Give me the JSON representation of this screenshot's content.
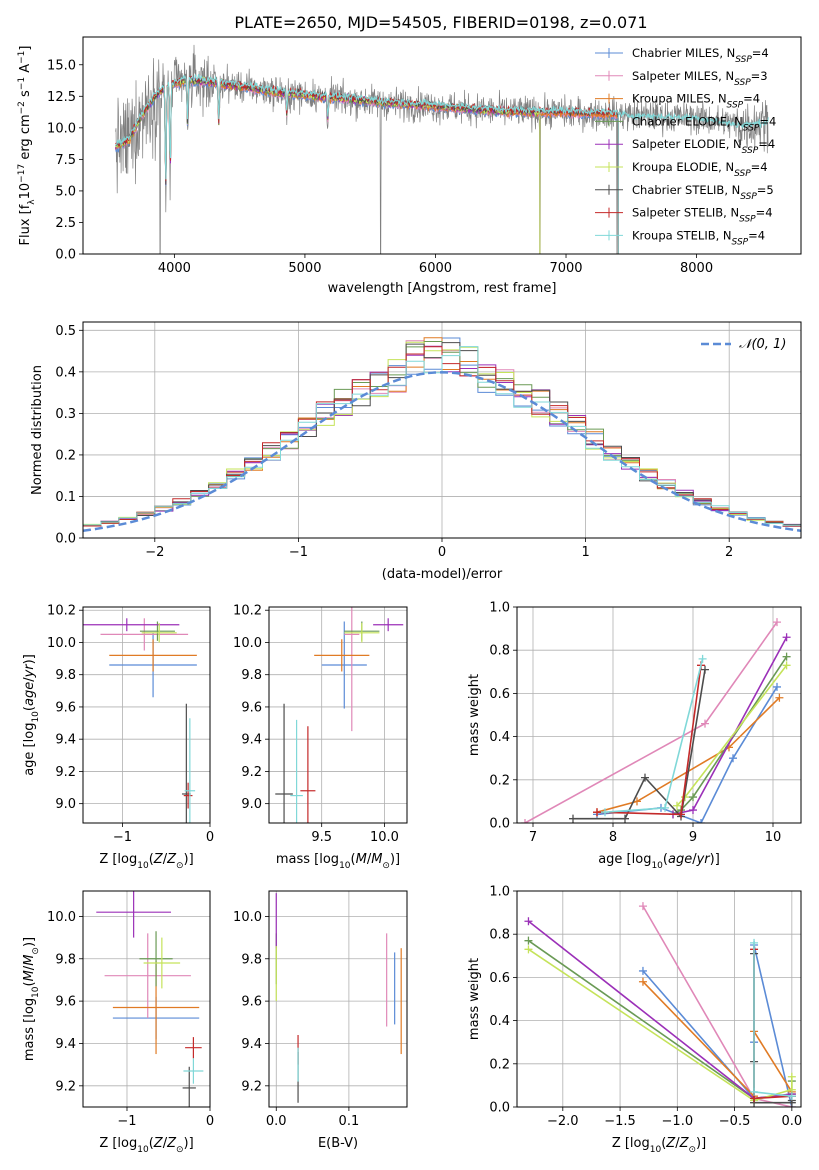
{
  "figure_title": "PLATE=2650, MJD=54505, FIBERID=0198, z=0.071",
  "colors": {
    "chabrier_miles": "#5b8bd6",
    "salpeter_miles": "#e088b8",
    "kroupa_miles": "#e07b25",
    "chabrier_elodie": "#6a9a55",
    "salpeter_elodie": "#9b30b8",
    "kroupa_elodie": "#c5e35a",
    "chabrier_stelib": "#4d4d4d",
    "salpeter_stelib": "#c42a2a",
    "kroupa_stelib": "#80d8d8",
    "gaussian": "#5b8bd6",
    "data": "#808080"
  },
  "chart_data": [
    {
      "id": "spectrum",
      "type": "line",
      "xlabel": "wavelength [Angstrom, rest frame]",
      "ylabel": "Flux [f",
      "xlim": [
        3300,
        8800
      ],
      "ylim": [
        0,
        17.2
      ],
      "xticks": [
        4000,
        5000,
        6000,
        7000,
        8000
      ],
      "yticks": [
        0.0,
        2.5,
        5.0,
        7.5,
        10.0,
        12.5,
        15.0
      ],
      "grid": false,
      "legend_position": "top-right",
      "legend": [
        {
          "model": "Chabrier MILES, N",
          "nssp": "=4",
          "key": "chabrier_miles"
        },
        {
          "model": "Salpeter MILES, N",
          "nssp": "=3",
          "key": "salpeter_miles"
        },
        {
          "model": "Kroupa MILES, N",
          "nssp": "=4",
          "key": "kroupa_miles"
        },
        {
          "model": "Chabrier ELODIE, N",
          "nssp": "=4",
          "key": "chabrier_elodie"
        },
        {
          "model": "Salpeter ELODIE, N",
          "nssp": "=4",
          "key": "salpeter_elodie"
        },
        {
          "model": "Kroupa ELODIE, N",
          "nssp": "=4",
          "key": "kroupa_elodie"
        },
        {
          "model": "Chabrier STELIB, N",
          "nssp": "=5",
          "key": "chabrier_stelib"
        },
        {
          "model": "Salpeter STELIB, N",
          "nssp": "=4",
          "key": "salpeter_stelib"
        },
        {
          "model": "Kroupa STELIB, N",
          "nssp": "=4",
          "key": "kroupa_stelib"
        }
      ],
      "continuum": [
        [
          3550,
          8.5
        ],
        [
          3650,
          9.0
        ],
        [
          3750,
          11.0
        ],
        [
          3850,
          12.5
        ],
        [
          3950,
          13.3
        ],
        [
          4100,
          13.8
        ],
        [
          4300,
          13.6
        ],
        [
          4500,
          13.3
        ],
        [
          4800,
          12.8
        ],
        [
          5200,
          12.4
        ],
        [
          5600,
          12.0
        ],
        [
          6000,
          11.7
        ],
        [
          6500,
          11.3
        ],
        [
          7000,
          11.2
        ],
        [
          7500,
          11.0
        ],
        [
          8000,
          10.8
        ],
        [
          8350,
          10.2
        ],
        [
          8550,
          10.5
        ]
      ],
      "absorption_features": [
        {
          "x": 3934,
          "y": 3.5
        },
        {
          "x": 3968,
          "y": 5.0
        },
        {
          "x": 4101,
          "y": 9.5
        },
        {
          "x": 4340,
          "y": 9.6
        },
        {
          "x": 4861,
          "y": 10.6
        },
        {
          "x": 5175,
          "y": 10.4
        }
      ],
      "sky_spikes": [
        {
          "x": 3890,
          "y": 0
        },
        {
          "x": 5580,
          "y": 0
        },
        {
          "x": 6800,
          "y": 0
        },
        {
          "x": 7390,
          "y": 0
        }
      ],
      "stelib_end": 7400,
      "noise_level": 1.0
    },
    {
      "id": "residuals",
      "type": "histogram",
      "xlabel": "(data-model)/error",
      "ylabel": "Normed distribution",
      "xlim": [
        -2.5,
        2.5
      ],
      "ylim": [
        0,
        0.52
      ],
      "xticks": [
        -2,
        -1,
        0,
        1,
        2
      ],
      "yticks": [
        0.0,
        0.1,
        0.2,
        0.3,
        0.4,
        0.5
      ],
      "grid": true,
      "legend_position": "top-right",
      "gaussian_label": "𝒩(0, 1)",
      "bins": 40
    },
    {
      "id": "age_vs_Z",
      "type": "errorbar",
      "xlabel": "Z [log",
      "ylabel": "age  [log",
      "xlim": [
        -1.45,
        0.0
      ],
      "ylim": [
        8.88,
        10.22
      ],
      "xticks": [
        -1,
        0
      ],
      "yticks": [
        9.0,
        9.2,
        9.4,
        9.6,
        9.8,
        10.0,
        10.2
      ],
      "grid": true,
      "points": [
        {
          "key": "chabrier_miles",
          "x": -0.65,
          "xerr": 0.5,
          "y": 9.86,
          "yerr": 0.2
        },
        {
          "key": "salpeter_miles",
          "x": -0.75,
          "xerr": 0.5,
          "y": 10.05,
          "yerr": 0.1
        },
        {
          "key": "kroupa_miles",
          "x": -0.65,
          "xerr": 0.5,
          "y": 9.92,
          "yerr": 0.1
        },
        {
          "key": "chabrier_elodie",
          "x": -0.6,
          "xerr": 0.2,
          "y": 10.07,
          "yerr": 0.06
        },
        {
          "key": "salpeter_elodie",
          "x": -0.95,
          "xerr": 0.6,
          "y": 10.11,
          "yerr": 0.04
        },
        {
          "key": "kroupa_elodie",
          "x": -0.58,
          "xerr": 0.2,
          "y": 10.06,
          "yerr": 0.06
        },
        {
          "key": "chabrier_stelib",
          "x": -0.27,
          "xerr": 0.05,
          "y": 9.06,
          "yerr": 0.56
        },
        {
          "key": "salpeter_stelib",
          "x": -0.25,
          "xerr": 0.05,
          "y": 9.05,
          "yerr": 0.08
        },
        {
          "key": "kroupa_stelib",
          "x": -0.23,
          "xerr": 0.06,
          "y": 9.08,
          "yerr": 0.45
        }
      ]
    },
    {
      "id": "age_vs_mass",
      "type": "errorbar",
      "xlabel": "mass [log",
      "ylabel": "",
      "xlim": [
        9.08,
        10.18
      ],
      "ylim": [
        8.88,
        10.22
      ],
      "xticks": [
        9.5,
        10.0
      ],
      "yticks": [
        9.0,
        9.2,
        9.4,
        9.6,
        9.8,
        10.0,
        10.2
      ],
      "grid": true,
      "points": [
        {
          "key": "chabrier_miles",
          "x": 9.68,
          "xerr": 0.18,
          "y": 9.86,
          "yerr": 0.27
        },
        {
          "key": "salpeter_miles",
          "x": 9.74,
          "xerr": 0.06,
          "y": 10.05,
          "yerr": 0.6
        },
        {
          "key": "kroupa_miles",
          "x": 9.66,
          "xerr": 0.22,
          "y": 9.92,
          "yerr": 0.1
        },
        {
          "key": "chabrier_elodie",
          "x": 9.82,
          "xerr": 0.14,
          "y": 10.07,
          "yerr": 0.06
        },
        {
          "key": "salpeter_elodie",
          "x": 10.03,
          "xerr": 0.12,
          "y": 10.11,
          "yerr": 0.04
        },
        {
          "key": "kroupa_elodie",
          "x": 9.82,
          "xerr": 0.14,
          "y": 10.06,
          "yerr": 0.06
        },
        {
          "key": "chabrier_stelib",
          "x": 9.2,
          "xerr": 0.07,
          "y": 9.06,
          "yerr": 0.56
        },
        {
          "key": "salpeter_stelib",
          "x": 9.39,
          "xerr": 0.06,
          "y": 9.08,
          "yerr": 0.4
        },
        {
          "key": "kroupa_stelib",
          "x": 9.3,
          "xerr": 0.05,
          "y": 9.05,
          "yerr": 0.47
        }
      ]
    },
    {
      "id": "weight_vs_age",
      "type": "line",
      "xlabel": "age  [log",
      "ylabel": "mass weight",
      "xlim": [
        6.8,
        10.35
      ],
      "ylim": [
        0,
        1.0
      ],
      "xticks": [
        7,
        8,
        9,
        10
      ],
      "yticks": [
        0.0,
        0.2,
        0.4,
        0.6,
        0.8,
        1.0
      ],
      "grid": true,
      "series": [
        {
          "key": "chabrier_miles",
          "x": [
            7.8,
            8.6,
            9.1,
            9.5,
            10.05
          ],
          "y": [
            0.04,
            0.07,
            0.0,
            0.3,
            0.63
          ]
        },
        {
          "key": "salpeter_miles",
          "x": [
            6.9,
            9.15,
            10.05
          ],
          "y": [
            0.0,
            0.46,
            0.93
          ]
        },
        {
          "key": "kroupa_miles",
          "x": [
            7.8,
            8.3,
            9.45,
            10.08
          ],
          "y": [
            0.05,
            0.1,
            0.35,
            0.58
          ]
        },
        {
          "key": "chabrier_elodie",
          "x": [
            8.75,
            8.85,
            9.0,
            10.17
          ],
          "y": [
            0.04,
            0.06,
            0.12,
            0.77
          ]
        },
        {
          "key": "salpeter_elodie",
          "x": [
            8.75,
            9.0,
            10.17
          ],
          "y": [
            0.04,
            0.06,
            0.86
          ]
        },
        {
          "key": "kroupa_elodie",
          "x": [
            8.8,
            8.9,
            10.17
          ],
          "y": [
            0.08,
            0.12,
            0.73
          ]
        },
        {
          "key": "chabrier_stelib",
          "x": [
            7.5,
            8.15,
            8.4,
            8.85,
            9.15
          ],
          "y": [
            0.02,
            0.02,
            0.21,
            0.03,
            0.71
          ]
        },
        {
          "key": "salpeter_stelib",
          "x": [
            7.8,
            8.85,
            9.1
          ],
          "y": [
            0.05,
            0.04,
            0.73
          ]
        },
        {
          "key": "kroupa_stelib",
          "x": [
            7.9,
            8.65,
            9.12
          ],
          "y": [
            0.05,
            0.07,
            0.76
          ]
        }
      ]
    },
    {
      "id": "mass_vs_Z",
      "type": "errorbar",
      "xlabel": "Z [log",
      "ylabel": "mass [log",
      "xlim": [
        -1.53,
        0.0
      ],
      "ylim": [
        9.1,
        10.12
      ],
      "xticks": [
        -1,
        0
      ],
      "yticks": [
        9.2,
        9.4,
        9.6,
        9.8,
        10.0
      ],
      "grid": true,
      "points": [
        {
          "key": "chabrier_miles",
          "x": -0.65,
          "xerr": 0.52,
          "y": 9.52,
          "yerr": 0.1
        },
        {
          "key": "salpeter_miles",
          "x": -0.75,
          "xerr": 0.52,
          "y": 9.72,
          "yerr": 0.2
        },
        {
          "key": "kroupa_miles",
          "x": -0.65,
          "xerr": 0.52,
          "y": 9.57,
          "yerr": 0.22
        },
        {
          "key": "chabrier_elodie",
          "x": -0.65,
          "xerr": 0.2,
          "y": 9.8,
          "yerr": 0.13
        },
        {
          "key": "salpeter_elodie",
          "x": -0.92,
          "xerr": 0.45,
          "y": 10.02,
          "yerr": 0.12
        },
        {
          "key": "kroupa_elodie",
          "x": -0.58,
          "xerr": 0.22,
          "y": 9.78,
          "yerr": 0.12
        },
        {
          "key": "chabrier_stelib",
          "x": -0.25,
          "xerr": 0.08,
          "y": 9.19,
          "yerr": 0.1
        },
        {
          "key": "salpeter_stelib",
          "x": -0.2,
          "xerr": 0.1,
          "y": 9.38,
          "yerr": 0.05
        },
        {
          "key": "kroupa_stelib",
          "x": -0.2,
          "xerr": 0.12,
          "y": 9.27,
          "yerr": 0.06
        }
      ]
    },
    {
      "id": "mass_vs_ebv",
      "type": "errorbar",
      "xlabel": "E(B-V)",
      "ylabel": "",
      "xlim": [
        -0.01,
        0.18
      ],
      "ylim": [
        9.1,
        10.12
      ],
      "xticks": [
        0.0,
        0.1
      ],
      "yticks": [
        9.2,
        9.4,
        9.6,
        9.8,
        10.0
      ],
      "grid": true,
      "points": [
        {
          "key": "chabrier_miles",
          "x": 0.163,
          "xerr": 0.0,
          "y": 9.66,
          "yerr": 0.17
        },
        {
          "key": "salpeter_miles",
          "x": 0.152,
          "xerr": 0.0,
          "y": 9.7,
          "yerr": 0.22
        },
        {
          "key": "kroupa_miles",
          "x": 0.172,
          "xerr": 0.0,
          "y": 9.6,
          "yerr": 0.25
        },
        {
          "key": "chabrier_elodie",
          "x": 0.0,
          "xerr": 0.0,
          "y": 9.8,
          "yerr": 0.12
        },
        {
          "key": "salpeter_elodie",
          "x": 0.0,
          "xerr": 0.0,
          "y": 9.98,
          "yerr": 0.13
        },
        {
          "key": "kroupa_elodie",
          "x": 0.0,
          "xerr": 0.0,
          "y": 9.73,
          "yerr": 0.13
        },
        {
          "key": "chabrier_stelib",
          "x": 0.03,
          "xerr": 0.0,
          "y": 9.24,
          "yerr": 0.12
        },
        {
          "key": "salpeter_stelib",
          "x": 0.03,
          "xerr": 0.0,
          "y": 9.37,
          "yerr": 0.07
        },
        {
          "key": "kroupa_stelib",
          "x": 0.03,
          "xerr": 0.0,
          "y": 9.3,
          "yerr": 0.08
        }
      ]
    },
    {
      "id": "weight_vs_Z",
      "type": "line",
      "xlabel": "Z [log",
      "ylabel": "mass weight",
      "xlim": [
        -2.4,
        0.08
      ],
      "ylim": [
        0,
        1.0
      ],
      "xticks": [
        -2.0,
        -1.5,
        -1.0,
        -0.5,
        0.0
      ],
      "yticks": [
        0.0,
        0.2,
        0.4,
        0.6,
        0.8,
        1.0
      ],
      "grid": true,
      "series": [
        {
          "key": "chabrier_miles",
          "x": [
            -1.3,
            -0.33,
            -0.33,
            -0.33,
            0.0,
            0.0
          ],
          "y": [
            0.63,
            0.04,
            0.3,
            0.75,
            0.0,
            0.05
          ]
        },
        {
          "key": "salpeter_miles",
          "x": [
            -1.3,
            -0.33,
            0.0
          ],
          "y": [
            0.93,
            0.04,
            0.0
          ]
        },
        {
          "key": "kroupa_miles",
          "x": [
            -1.3,
            -0.33,
            -0.33,
            0.0
          ],
          "y": [
            0.58,
            0.05,
            0.35,
            0.07
          ]
        },
        {
          "key": "chabrier_elodie",
          "x": [
            -2.3,
            -0.33,
            0.0,
            0.0
          ],
          "y": [
            0.77,
            0.04,
            0.06,
            0.12
          ]
        },
        {
          "key": "salpeter_elodie",
          "x": [
            -2.3,
            -0.33,
            0.0
          ],
          "y": [
            0.86,
            0.04,
            0.06
          ]
        },
        {
          "key": "kroupa_elodie",
          "x": [
            -2.3,
            -0.33,
            0.0,
            0.0
          ],
          "y": [
            0.73,
            0.03,
            0.08,
            0.14
          ]
        },
        {
          "key": "chabrier_stelib",
          "x": [
            -0.33,
            -0.33,
            -0.33,
            0.0,
            0.0
          ],
          "y": [
            0.71,
            0.21,
            0.02,
            0.02,
            0.03
          ]
        },
        {
          "key": "salpeter_stelib",
          "x": [
            -0.33,
            -0.33,
            0.0
          ],
          "y": [
            0.73,
            0.04,
            0.05
          ]
        },
        {
          "key": "kroupa_stelib",
          "x": [
            -0.33,
            -0.33,
            0.0
          ],
          "y": [
            0.76,
            0.07,
            0.05
          ]
        }
      ]
    }
  ]
}
